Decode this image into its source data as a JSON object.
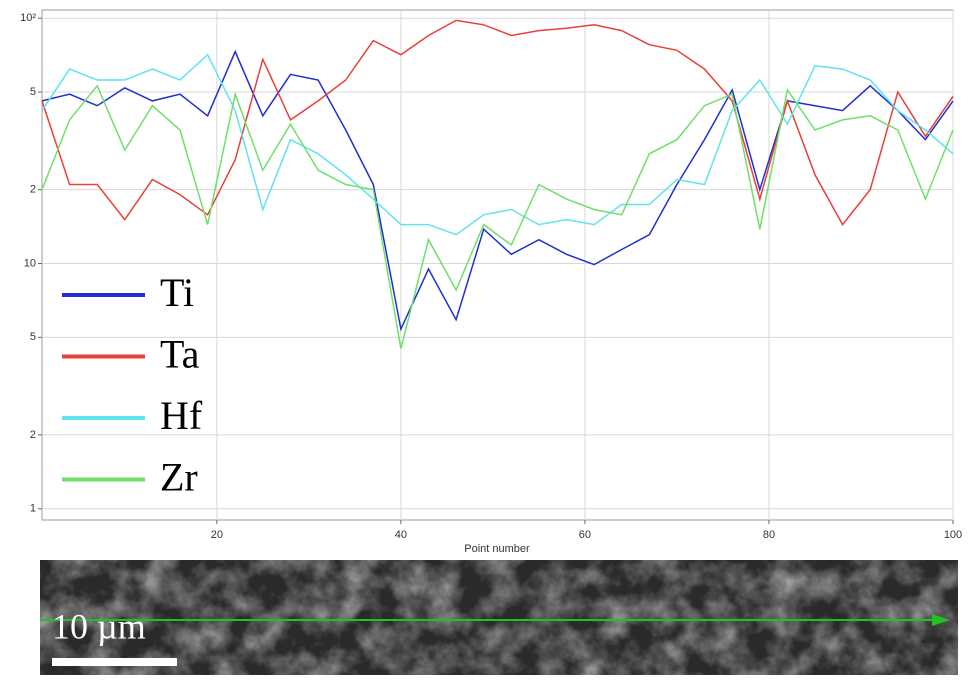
{
  "chart_data": {
    "type": "line",
    "x_label": "Point number",
    "x": [
      1,
      4,
      7,
      10,
      13,
      16,
      19,
      22,
      25,
      28,
      31,
      34,
      37,
      40,
      43,
      46,
      49,
      52,
      55,
      58,
      61,
      64,
      67,
      70,
      73,
      76,
      79,
      82,
      85,
      88,
      91,
      94,
      97,
      100
    ],
    "series": [
      {
        "name": "Ti",
        "color": "#1f2fd0",
        "values": [
          46,
          49,
          44,
          52,
          46,
          49,
          40,
          73,
          40,
          59,
          56,
          35,
          21,
          5.4,
          9.5,
          5.9,
          13.8,
          10.9,
          12.5,
          10.9,
          9.9,
          11.4,
          13.1,
          21,
          32,
          51,
          20,
          46,
          44,
          42,
          53,
          42,
          32,
          46
        ]
      },
      {
        "name": "Ta",
        "color": "#e8403a",
        "values": [
          46,
          21,
          21,
          15.1,
          22,
          19.1,
          15.8,
          26.5,
          68,
          38.5,
          46,
          56,
          81,
          71,
          85,
          98,
          94,
          85,
          89,
          91,
          94,
          89,
          78,
          74,
          62,
          46,
          18.3,
          46,
          23,
          14.4,
          20,
          50,
          33,
          48
        ]
      },
      {
        "name": "Hf",
        "color": "#5fe3ee",
        "values": [
          42,
          62,
          56,
          56,
          62,
          56,
          71,
          42,
          16.6,
          32,
          28,
          23,
          18.3,
          14.4,
          14.4,
          13.1,
          15.8,
          16.6,
          14.4,
          15.1,
          14.4,
          17.4,
          17.4,
          22,
          21,
          42,
          56,
          37,
          64,
          62,
          56,
          42,
          35,
          28
        ]
      },
      {
        "name": "Zr",
        "color": "#6ee06a",
        "values": [
          20,
          38.5,
          53,
          29,
          44,
          35,
          14.4,
          49,
          24,
          37,
          24,
          21,
          20,
          4.5,
          12.5,
          7.8,
          14.4,
          11.9,
          21,
          18.3,
          16.6,
          15.8,
          28,
          32,
          44,
          49,
          13.8,
          51,
          35,
          38.5,
          40,
          35,
          18.3,
          35
        ]
      }
    ],
    "xlim": [
      1,
      100
    ],
    "xticks": [
      20,
      40,
      60,
      80,
      100
    ],
    "ylim": [
      0.9,
      108
    ],
    "log_y": true,
    "yticks": [
      1,
      2,
      5,
      10,
      {
        "value": 20,
        "label": "2"
      },
      {
        "value": 50,
        "label": "5"
      },
      {
        "value": 100,
        "label": "10²"
      }
    ],
    "grid": true
  },
  "image": {
    "scale_bar": "10 µm"
  }
}
